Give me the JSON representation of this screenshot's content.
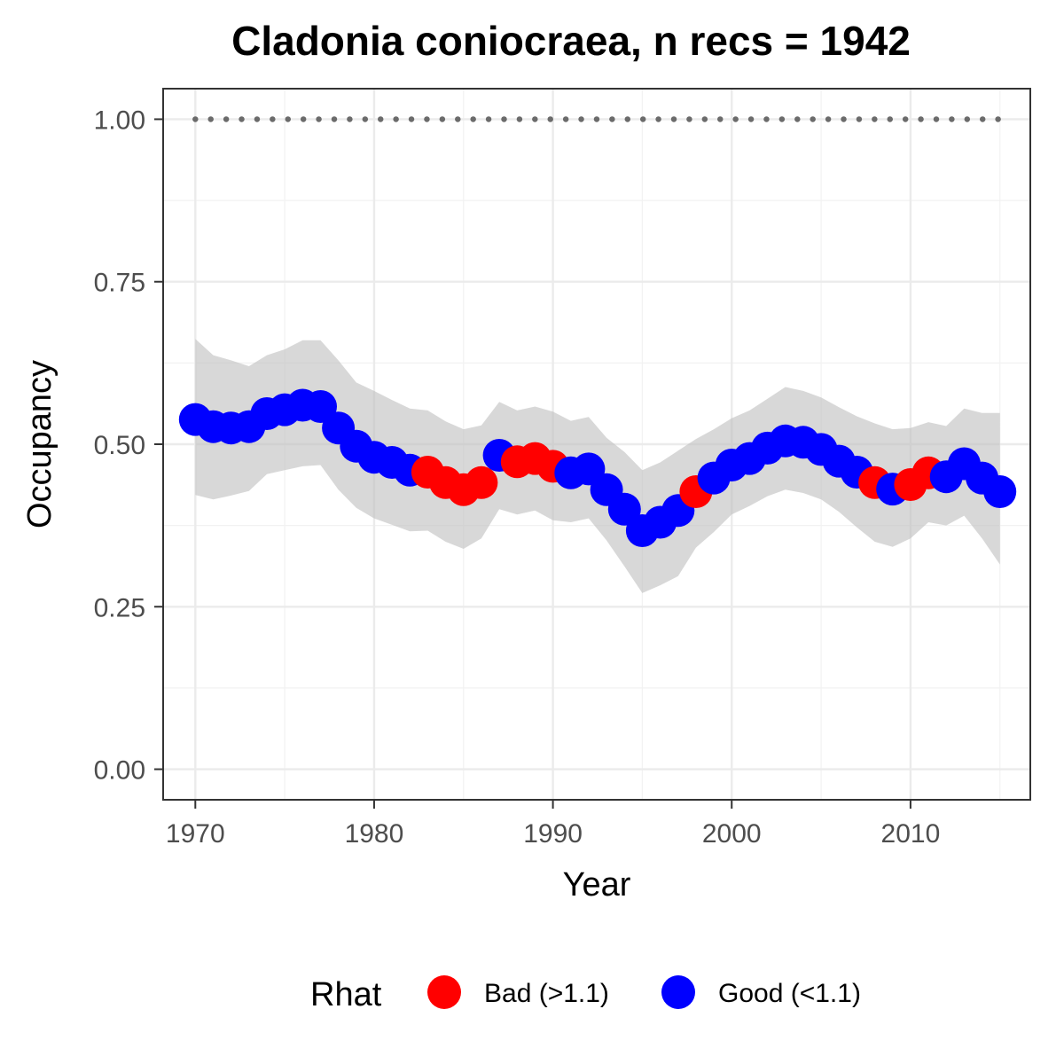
{
  "chart_data": {
    "type": "line",
    "title": "Cladonia coniocraea, n recs = 1942",
    "xlabel": "Year",
    "ylabel": "Occupancy",
    "xlim": [
      1968.2,
      2016.7
    ],
    "ylim": [
      -0.047,
      1.047
    ],
    "x_ticks": [
      1970,
      1980,
      1990,
      2000,
      2010
    ],
    "y_ticks": [
      0.0,
      0.25,
      0.5,
      0.75,
      1.0
    ],
    "y_tick_labels": [
      "0.00",
      "0.25",
      "0.50",
      "0.75",
      "1.00"
    ],
    "grid": true,
    "legend_position": "bottom",
    "legend": {
      "title": "Rhat",
      "entries": [
        {
          "key": "bad",
          "label": "Bad (>1.1)",
          "color": "#ff0000"
        },
        {
          "key": "good",
          "label": "Good (<1.1)",
          "color": "#0000ff"
        }
      ]
    },
    "colors": {
      "ribbon": "#bebebe",
      "reference_line": "#6b6b6b",
      "bad": "#ff0000",
      "good": "#0000ff"
    },
    "reference_line": {
      "y": 1.0,
      "x_start": 1970,
      "x_end": 2015,
      "style": "dotted"
    },
    "series": [
      {
        "x": [
          1970,
          1971,
          1972,
          1973,
          1974,
          1975,
          1976,
          1977,
          1978,
          1979,
          1980,
          1981,
          1982,
          1983,
          1984,
          1985,
          1986,
          1987,
          1988,
          1989,
          1990,
          1991,
          1992,
          1993,
          1994,
          1995,
          1996,
          1997,
          1998,
          1999,
          2000,
          2001,
          2002,
          2003,
          2004,
          2005,
          2006,
          2007,
          2008,
          2009,
          2010,
          2011,
          2012,
          2013,
          2014,
          2015
        ],
        "y": [
          0.538,
          0.527,
          0.525,
          0.527,
          0.547,
          0.553,
          0.56,
          0.558,
          0.525,
          0.497,
          0.48,
          0.472,
          0.46,
          0.457,
          0.441,
          0.43,
          0.441,
          0.483,
          0.473,
          0.478,
          0.466,
          0.456,
          0.462,
          0.43,
          0.4,
          0.367,
          0.38,
          0.398,
          0.427,
          0.448,
          0.468,
          0.478,
          0.494,
          0.505,
          0.503,
          0.492,
          0.474,
          0.457,
          0.441,
          0.431,
          0.438,
          0.456,
          0.45,
          0.47,
          0.448,
          0.427
        ],
        "lower": [
          0.422,
          0.415,
          0.421,
          0.428,
          0.454,
          0.46,
          0.466,
          0.468,
          0.43,
          0.402,
          0.386,
          0.376,
          0.366,
          0.367,
          0.35,
          0.339,
          0.355,
          0.4,
          0.392,
          0.398,
          0.383,
          0.38,
          0.386,
          0.352,
          0.312,
          0.271,
          0.283,
          0.297,
          0.341,
          0.365,
          0.392,
          0.405,
          0.42,
          0.43,
          0.425,
          0.415,
          0.396,
          0.372,
          0.35,
          0.342,
          0.355,
          0.38,
          0.375,
          0.39,
          0.355,
          0.315
        ],
        "upper": [
          0.662,
          0.637,
          0.629,
          0.62,
          0.637,
          0.646,
          0.66,
          0.66,
          0.629,
          0.595,
          0.582,
          0.568,
          0.555,
          0.552,
          0.535,
          0.523,
          0.529,
          0.565,
          0.552,
          0.558,
          0.55,
          0.536,
          0.542,
          0.51,
          0.488,
          0.46,
          0.472,
          0.49,
          0.508,
          0.523,
          0.54,
          0.552,
          0.57,
          0.588,
          0.582,
          0.572,
          0.557,
          0.543,
          0.532,
          0.523,
          0.525,
          0.534,
          0.528,
          0.555,
          0.548,
          0.548
        ],
        "rhat": [
          "good",
          "good",
          "good",
          "good",
          "good",
          "good",
          "good",
          "good",
          "good",
          "good",
          "good",
          "good",
          "good",
          "bad",
          "bad",
          "bad",
          "bad",
          "good",
          "bad",
          "bad",
          "bad",
          "good",
          "good",
          "good",
          "good",
          "good",
          "good",
          "good",
          "bad",
          "good",
          "good",
          "good",
          "good",
          "good",
          "good",
          "good",
          "good",
          "good",
          "bad",
          "good",
          "bad",
          "bad",
          "good",
          "good",
          "good",
          "good"
        ]
      }
    ]
  }
}
